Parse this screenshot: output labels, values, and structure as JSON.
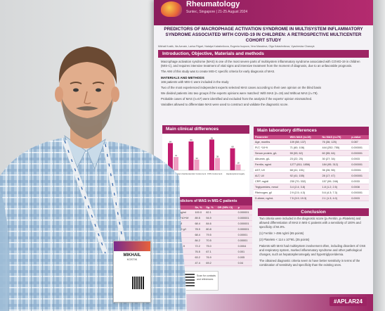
{
  "poster": {
    "conference": "Rheumatology",
    "venue": "Suntec, Singapore | 21-25 August 2024",
    "title": "PREDICTORS OF MACROPHAGE ACTIVATION SYNDROME IN MULTISYSTEM INFLAMMATORY SYNDROME ASSOCIATED WITH COVID-19 IN CHILDREN: A RETROSPECTIVE MULTICENTER COHORT STUDY",
    "authors": "Mikhail Kostik, Ilia Avrusin, Larisa Fitgart, Natalya Kalashnikova, Eugenia Isupova, Vera Masalova, Olga Kalashnikova, Vyacheslav Chasnyk",
    "sections": {
      "intro_heading": "Introduction, Objective, Materials and methods",
      "intro_text": "Macrophage activation syndrome (MAS) is one of the most severe parts of multisystem inflammatory syndrome associated with COVID-19 in children (MIS-C), and requires intensive treatment of vital signs and intensive treatment from the moment of diagnosis, due to an unfavorable prognosis.",
      "aim_text": "The AIM of this study was to create MIS-C specific criteria for early diagnosis of MAS.",
      "methods_heading": "MATERIALS AND METHODS",
      "methods_items": [
        "166 patients with MIS-C were included in the study",
        "Two of the most experienced independent experts selected MAS cases according to their own opinion on the blind basis",
        "We divided patients into two groups if the experts opinions were matched: With MAS (n=19) and Without MAS (n=79).",
        "Probable cases of MAS (n=67) were identified and excluded from the analysis if the experts' opinion mismatched.",
        "Variables allowed to differentiate MAS were used to construct and validate the diagnostic score."
      ],
      "clinical_heading": "Main clinical differences",
      "lab_heading": "Main laboratory differences",
      "predictors_heading": "Main predictors of MAS in MIS-C patients",
      "conclusion_heading": "Conclusion",
      "conclusion_items": [
        "Two criteria were included in the diagnostic score (p=Ferritin, p=Platelets) and allowed differentiation of MAS in MIS-C patients with a sensitivity of 100% and specificity of 94.9%.",
        "(1) Ferritin > 496 ng/ml (65 points)",
        "(2) Platelets < 114 x 10^9/L (35 points)",
        "Patients with MAS had multisystem involvement often, including disorders of CNS and respiratory system, marked inflammatory syndrome and other pathological changes, such as hepatosplenomegaly and hypertriglyceridemia.",
        "The obtained diagnostic criteria seem to have better sensitivity in terms of the combination of sensitivity and specificity than the existing ones."
      ],
      "qr_text": "Scan for contacts and references",
      "hashtag": "#APLAR24"
    },
    "lab_table": {
      "headers": [
        "Parameter",
        "With MAS (n=19)",
        "No MAS (n=79)",
        "p-value"
      ],
      "rows": [
        [
          "Age, months",
          "109 (58; 137)",
          "76 (36; 125)",
          "0.087"
        ],
        [
          "PLT, *10^9",
          "71 (60; 108)",
          "444 (252; 755)",
          "0.000001"
        ],
        [
          "Serum protein, g/L",
          "55 (53; 62)",
          "60 (55; 64)",
          "0.000001"
        ],
        [
          "Albumin, g/L",
          "23 (22; 25)",
          "30 (27; 34)",
          "0.0003"
        ],
        [
          "Ferritin, ng/ml",
          "1277 (811; 1856)",
          "184 (95; 312)",
          "0.000001"
        ],
        [
          "AST, U/l",
          "68 (41; 151)",
          "36 (26; 56)",
          "0.00001"
        ],
        [
          "ALT, U/l",
          "92 (41; 155)",
          "28 (17; 47)",
          "0.000001"
        ],
        [
          "CRP, mg/dl",
          "230 (70; 332)",
          "157 (99; 246)",
          "0.0033"
        ],
        [
          "Triglycerides, mmol",
          "3.4 (2.4; 3.8)",
          "1.8 (1.2; 2.5)",
          "0.0008"
        ],
        [
          "Fibrinogen, g/l",
          "2.9 (2.5; 4.3)",
          "5.6 (4.3; 7.3)",
          "0.000001"
        ],
        [
          "D-dimer, ng/mL",
          "7.5 (3.9; 19.3)",
          "2.1 (1.3; 4.0)",
          "0.0003"
        ]
      ]
    },
    "predictor_table": {
      "headers": [
        "Predictor",
        "Se, %",
        "Sp, %",
        "OR (95% CI)",
        "p"
      ],
      "rows": [
        [
          "Ferritin >496 ng/ml",
          "100.0",
          "82.1",
          "",
          "0.000001"
        ],
        [
          "Platelets <114*10^9/l",
          "89.5",
          "94.9",
          "",
          "0.000001"
        ],
        [
          "Albumin <24 g/l",
          "68.4",
          "84.6",
          "",
          "0.000001"
        ],
        [
          "Fibrinogen <4.2 g/l",
          "78.9",
          "80.8",
          "",
          "0.000001"
        ],
        [
          "AST >59 U/l",
          "68.4",
          "79.5",
          "",
          "0.00001"
        ],
        [
          "ALT >40 U/l",
          "84.2",
          "70.5",
          "",
          "0.00001"
        ],
        [
          "Triglycerides >2.9",
          "72.2",
          "75.0",
          "",
          "0.0004"
        ],
        [
          "D-dimer >3.4",
          "76.5",
          "67.1",
          "",
          "0.001"
        ],
        [
          "CRP >",
          "63.2",
          "76.9",
          "",
          "0.005"
        ],
        [
          "Age >",
          "47.4",
          "69.2",
          "",
          "0.04"
        ]
      ]
    },
    "clinical_chart": {
      "groups": [
        "Respiratory system",
        "Cardiovascular involvement",
        "CNS involvement",
        "Hepatosplenomegaly"
      ],
      "with_mas": [
        84,
        89,
        95,
        68
      ],
      "without_mas": [
        41,
        33,
        38,
        18
      ],
      "colors": {
        "with": "#c21c6e",
        "without": "#ef9ec2"
      }
    }
  },
  "badge": {
    "name": "MIKHAIL",
    "surname": "KOSTIK"
  },
  "colors": {
    "poster_accent": "#9d2464",
    "shirt": "#a9c7e0"
  }
}
